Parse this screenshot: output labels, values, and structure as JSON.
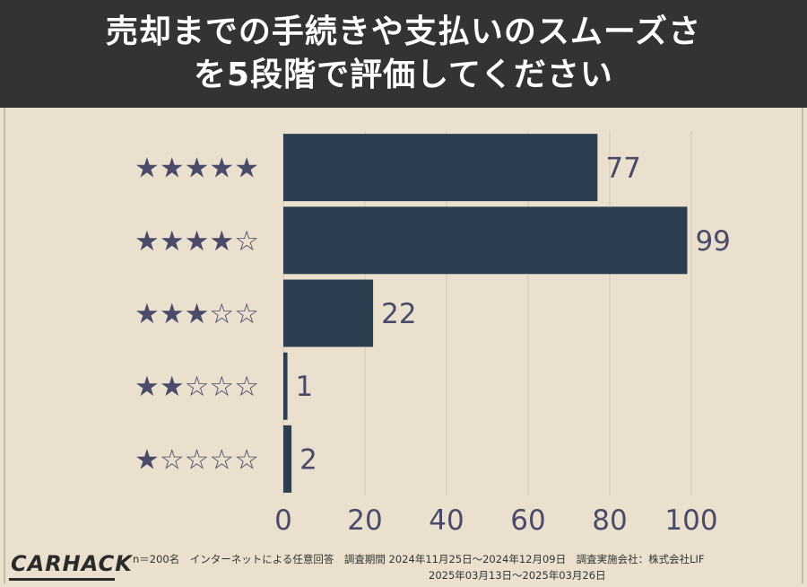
{
  "header": {
    "title_line1": "売却までの手続きや支払いのスムーズさ",
    "title_line2": "を5段階で評価してください"
  },
  "chart_data": {
    "type": "bar",
    "orientation": "horizontal",
    "categories": [
      "★★★★★",
      "★★★★☆",
      "★★★☆☆",
      "★★☆☆☆",
      "★☆☆☆☆"
    ],
    "values": [
      77,
      99,
      22,
      1,
      2
    ],
    "xlim": [
      0,
      100
    ],
    "xticks": [
      0,
      20,
      40,
      60,
      80,
      100
    ],
    "grid": true,
    "colors": {
      "bar": "#2c3e50",
      "label": "#4a4a6a",
      "grid": "#d2c8b6",
      "background": "#ebe0cd"
    }
  },
  "footer": {
    "logo": "CARHACK",
    "note_line1": "n＝200名　インターネットによる任意回答　調査期間 2024年11月25日～2024年12月09日　調査実施会社：株式会社LIF",
    "note_line2": "2025年03月13日～2025年03月26日"
  }
}
